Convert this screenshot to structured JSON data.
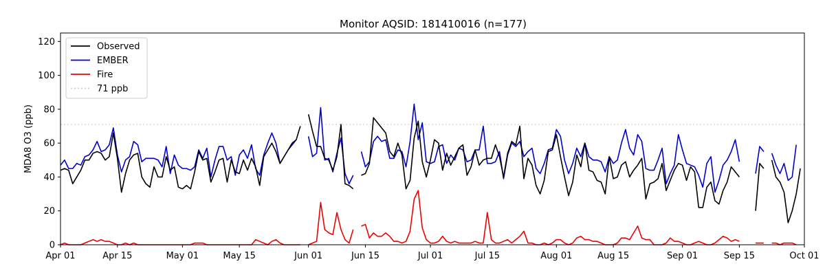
{
  "chart_data": {
    "type": "line",
    "title": "Monitor AQSID: 181410016 (n=177)",
    "xlabel": "",
    "ylabel": "MDA8 O3 (ppb)",
    "x_start": "2023-04-01",
    "x_end": "2023-10-01",
    "ylim": [
      0,
      125
    ],
    "yticks": [
      0,
      20,
      40,
      60,
      80,
      100,
      120
    ],
    "xticks": [
      {
        "date": "2023-04-01",
        "label": "Apr 01"
      },
      {
        "date": "2023-04-15",
        "label": "Apr 15"
      },
      {
        "date": "2023-05-01",
        "label": "May 01"
      },
      {
        "date": "2023-05-15",
        "label": "May 15"
      },
      {
        "date": "2023-06-01",
        "label": "Jun 01"
      },
      {
        "date": "2023-06-15",
        "label": "Jun 15"
      },
      {
        "date": "2023-07-01",
        "label": "Jul 01"
      },
      {
        "date": "2023-07-15",
        "label": "Jul 15"
      },
      {
        "date": "2023-08-01",
        "label": "Aug 01"
      },
      {
        "date": "2023-08-15",
        "label": "Aug 15"
      },
      {
        "date": "2023-09-01",
        "label": "Sep 01"
      },
      {
        "date": "2023-09-15",
        "label": "Sep 15"
      },
      {
        "date": "2023-10-01",
        "label": "Oct 01"
      }
    ],
    "legend_position": "upper-left",
    "grid": false,
    "reference_line": {
      "name": "71 ppb",
      "value": 71,
      "color": "#cccccc"
    },
    "series": [
      {
        "name": "Observed",
        "color": "#000000",
        "segments": [
          {
            "start": "2023-04-01",
            "values": [
              44,
              45,
              44,
              36,
              40,
              44,
              50,
              50,
              54,
              55,
              54,
              50,
              52,
              66,
              51,
              31,
              42,
              50,
              53,
              54,
              40,
              36,
              34,
              46,
              40,
              40,
              52,
              44,
              46,
              34,
              33,
              35,
              33,
              43,
              55,
              50,
              51,
              37,
              43,
              50,
              51,
              37,
              50,
              43,
              42,
              50,
              44,
              51,
              46,
              35,
              52,
              56,
              60,
              55,
              48,
              52,
              56,
              60,
              62,
              70
            ]
          },
          {
            "start": "2023-06-01",
            "values": [
              77,
              67,
              58,
              58,
              51,
              50,
              44,
              52,
              71,
              36,
              35,
              33
            ]
          },
          {
            "start": "2023-06-14",
            "values": [
              41,
              42,
              48,
              75,
              72,
              69,
              66,
              55,
              52,
              60,
              53,
              33,
              38,
              63,
              73,
              49,
              40,
              50,
              62,
              60,
              44,
              54,
              47,
              52,
              57,
              59,
              41,
              46,
              56,
              47,
              50,
              51,
              51,
              59,
              52,
              40,
              54,
              61,
              59,
              70,
              39,
              51,
              47,
              35,
              30,
              38,
              55,
              56,
              65,
              52,
              40,
              29,
              37,
              53,
              46,
              60,
              44,
              43,
              38,
              37,
              30,
              52,
              39,
              40,
              47,
              49,
              40,
              44,
              47,
              51,
              27,
              36,
              37,
              39,
              48,
              32,
              38,
              44,
              48,
              47,
              38,
              46,
              43,
              22,
              22,
              34,
              37,
              26,
              24,
              32,
              37,
              46,
              43,
              40
            ]
          },
          {
            "start": "2023-09-19",
            "values": [
              20,
              48,
              45
            ]
          },
          {
            "start": "2023-09-23",
            "values": [
              50,
              40,
              37,
              31,
              13,
              20,
              30,
              45
            ]
          }
        ]
      },
      {
        "name": "EMBER",
        "color": "#0000cc",
        "segments": [
          {
            "start": "2023-04-01",
            "values": [
              47,
              50,
              45,
              45,
              48,
              47,
              52,
              53,
              56,
              61,
              55,
              56,
              59,
              69,
              53,
              43,
              50,
              52,
              61,
              59,
              49,
              51,
              51,
              51,
              50,
              46,
              58,
              42,
              53,
              47,
              45,
              45,
              44,
              46,
              56,
              51,
              57,
              40,
              50,
              58,
              58,
              50,
              52,
              41,
              53,
              56,
              51,
              59,
              45,
              41,
              53,
              60,
              66,
              60,
              48,
              52,
              56,
              59,
              62
            ]
          },
          {
            "start": "2023-06-01",
            "values": [
              64,
              52,
              54,
              81,
              50,
              51,
              43,
              54,
              63,
              42,
              36,
              41
            ]
          },
          {
            "start": "2023-06-14",
            "values": [
              55,
              46,
              49,
              61,
              64,
              61,
              62,
              51,
              51,
              56,
              55,
              46,
              61,
              83,
              62,
              72,
              49,
              48,
              49,
              58,
              59,
              48,
              53,
              50,
              57,
              56,
              49,
              50,
              56,
              56,
              70,
              48,
              48,
              49,
              55,
              39,
              53,
              60,
              58,
              61,
              52,
              55,
              57,
              45,
              42,
              48,
              56,
              57,
              68,
              64,
              50,
              42,
              48,
              57,
              52,
              60,
              52,
              50,
              50,
              49,
              43,
              52,
              48,
              50,
              60,
              68,
              57,
              53,
              65,
              61,
              45,
              44,
              44,
              50,
              57,
              36,
              42,
              47,
              65,
              56,
              48,
              47,
              46,
              41,
              34,
              48,
              52,
              31,
              38,
              47,
              50,
              55,
              62,
              49
            ]
          },
          {
            "start": "2023-09-19",
            "values": [
              42,
              58,
              55
            ]
          },
          {
            "start": "2023-09-23",
            "values": [
              54,
              47,
              42,
              48,
              38,
              40,
              59
            ]
          }
        ]
      },
      {
        "name": "Fire",
        "color": "#ee0000",
        "segments": [
          {
            "start": "2023-04-01",
            "values": [
              0,
              1,
              0,
              0,
              0,
              0,
              1,
              2,
              3,
              2,
              3,
              2,
              2,
              1,
              0,
              0,
              1,
              0,
              1,
              0,
              0,
              0,
              0,
              0,
              0,
              0,
              0,
              0,
              0,
              0,
              0,
              0,
              0,
              1,
              1,
              1,
              0,
              0,
              0,
              0,
              0,
              0,
              0,
              0,
              0,
              0,
              0,
              0,
              3,
              2,
              1,
              0,
              2,
              3,
              1,
              0,
              0,
              0,
              0,
              0
            ]
          },
          {
            "start": "2023-06-01",
            "values": [
              0,
              1,
              2,
              25,
              9,
              7,
              6,
              19,
              9,
              3,
              1,
              9
            ]
          },
          {
            "start": "2023-06-14",
            "values": [
              11,
              12,
              4,
              7,
              5,
              5,
              7,
              5,
              2,
              2,
              1,
              2,
              8,
              27,
              32,
              10,
              3,
              1,
              1,
              2,
              5,
              2,
              1,
              2,
              1,
              1,
              1,
              1,
              2,
              1,
              1,
              19,
              3,
              1,
              1,
              2,
              3,
              1,
              3,
              5,
              8,
              1,
              1,
              0,
              0,
              1,
              0,
              1,
              3,
              3,
              1,
              0,
              1,
              4,
              5,
              3,
              3,
              2,
              2,
              1,
              0,
              0,
              0,
              1,
              4,
              4,
              3,
              7,
              11,
              4,
              3,
              3,
              0,
              0,
              0,
              1,
              4,
              2,
              2,
              1,
              0,
              0,
              1,
              2,
              1,
              0,
              0,
              1,
              3,
              5,
              4,
              2,
              3,
              2
            ]
          },
          {
            "start": "2023-09-19",
            "values": [
              1,
              1,
              1
            ]
          },
          {
            "start": "2023-09-23",
            "values": [
              1,
              1,
              0,
              1,
              1,
              1,
              0
            ]
          }
        ]
      }
    ]
  }
}
